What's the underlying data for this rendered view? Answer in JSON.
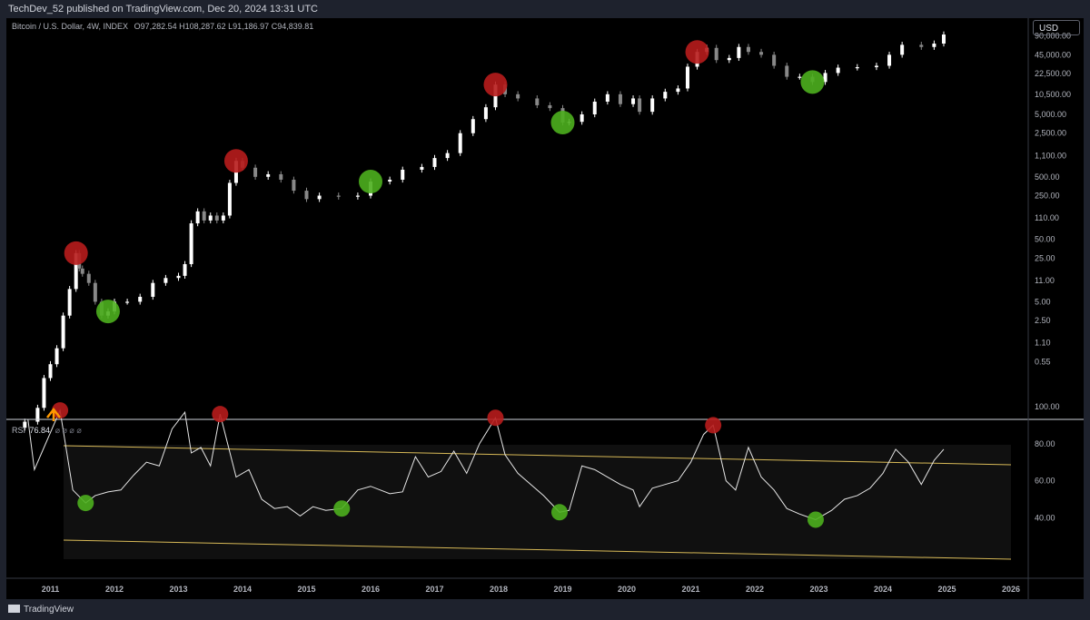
{
  "header": {
    "publish_text": "TechDev_52 published on TradingView.com, Dec 20, 2024 13:31 UTC"
  },
  "legend": {
    "symbol": "Bitcoin / U.S. Dollar, 4W, INDEX",
    "ohlc": "O97,282.54  H108,287.62  L91,186.97  C94,839.81"
  },
  "currency_button": "USD",
  "rsi": {
    "label": "RSI",
    "value": "76.84",
    "flags": "⌀ ⌀ ⌀ ⌀"
  },
  "footer": {
    "brand": "TradingView"
  },
  "colors": {
    "candle_up": "#ffffff",
    "candle_down": "#888888",
    "top_marker": "#b71c1c",
    "bottom_marker": "#4caf1e",
    "channel": "#d7b957",
    "rsi_line": "#e6e6e6",
    "arrow": "#ff9800"
  },
  "chart_data": [
    {
      "type": "line",
      "title": "Bitcoin / U.S. Dollar, 4W, INDEX",
      "scale": "log",
      "y_ticks": [
        "0.55",
        "1.10",
        "2.50",
        "5.00",
        "11.00",
        "25.00",
        "50.00",
        "110.00",
        "250.00",
        "500.00",
        "1,100.00",
        "2,500.00",
        "5,000.00",
        "10,500.00",
        "22,500.00",
        "45,000.00",
        "90,000.00"
      ],
      "x_ticks": [
        "2011",
        "2012",
        "2013",
        "2014",
        "2015",
        "2016",
        "2017",
        "2018",
        "2019",
        "2020",
        "2021",
        "2022",
        "2023",
        "2024",
        "2025",
        "2026"
      ],
      "series": [
        {
          "x": [
            2010.6,
            2010.8,
            2010.9,
            2011.0,
            2011.1,
            2011.2,
            2011.3,
            2011.4,
            2011.45,
            2011.5,
            2011.6,
            2011.7,
            2011.8,
            2011.9,
            2012.0,
            2012.2,
            2012.4,
            2012.6,
            2012.8,
            2013.0,
            2013.1,
            2013.2,
            2013.3,
            2013.4,
            2013.5,
            2013.6,
            2013.7,
            2013.8,
            2013.9,
            2014.0,
            2014.2,
            2014.4,
            2014.6,
            2014.8,
            2015.0,
            2015.2,
            2015.5,
            2015.8,
            2016.0,
            2016.3,
            2016.5,
            2016.8,
            2017.0,
            2017.2,
            2017.4,
            2017.6,
            2017.8,
            2017.95,
            2018.1,
            2018.3,
            2018.6,
            2018.8,
            2019.0,
            2019.1,
            2019.3,
            2019.5,
            2019.7,
            2019.9,
            2020.1,
            2020.2,
            2020.4,
            2020.6,
            2020.8,
            2020.95,
            2021.1,
            2021.25,
            2021.4,
            2021.6,
            2021.75,
            2021.9,
            2022.1,
            2022.3,
            2022.5,
            2022.7,
            2022.9,
            2023.1,
            2023.3,
            2023.6,
            2023.9,
            2024.1,
            2024.3,
            2024.6,
            2024.8,
            2024.95
          ],
          "values": [
            0.06,
            0.1,
            0.3,
            0.5,
            0.9,
            3,
            8,
            30,
            17,
            14,
            10,
            5,
            3,
            3.5,
            5,
            5,
            6,
            10,
            12,
            13,
            20,
            90,
            140,
            100,
            120,
            100,
            120,
            400,
            900,
            700,
            500,
            550,
            450,
            300,
            220,
            250,
            240,
            250,
            420,
            450,
            650,
            720,
            1000,
            1200,
            2500,
            4200,
            6500,
            15000,
            10500,
            9000,
            7000,
            6300,
            3700,
            3800,
            5000,
            8000,
            10500,
            7300,
            9000,
            5500,
            9000,
            11500,
            13000,
            29000,
            50000,
            58000,
            37000,
            40000,
            60000,
            50000,
            45000,
            30000,
            20000,
            20000,
            16500,
            23000,
            28000,
            28500,
            30000,
            45000,
            65000,
            60000,
            68000,
            95000
          ]
        }
      ]
    },
    {
      "type": "line",
      "title": "RSI",
      "ylim": [
        30,
        110
      ],
      "y_ticks": [
        "40.00",
        "60.00",
        "80.00",
        "100.00"
      ],
      "series": [
        {
          "name": "RSI",
          "x": [
            2010.65,
            2010.75,
            2010.9,
            2011.0,
            2011.15,
            2011.35,
            2011.55,
            2011.7,
            2011.9,
            2012.1,
            2012.3,
            2012.5,
            2012.7,
            2012.9,
            2013.1,
            2013.2,
            2013.35,
            2013.5,
            2013.65,
            2013.9,
            2014.1,
            2014.3,
            2014.5,
            2014.7,
            2014.9,
            2015.1,
            2015.3,
            2015.55,
            2015.8,
            2016.0,
            2016.3,
            2016.5,
            2016.7,
            2016.9,
            2017.1,
            2017.3,
            2017.5,
            2017.7,
            2017.95,
            2018.1,
            2018.3,
            2018.5,
            2018.7,
            2018.95,
            2019.1,
            2019.3,
            2019.5,
            2019.7,
            2019.9,
            2020.1,
            2020.2,
            2020.4,
            2020.6,
            2020.8,
            2021.0,
            2021.2,
            2021.35,
            2021.55,
            2021.7,
            2021.9,
            2022.1,
            2022.3,
            2022.5,
            2022.7,
            2022.95,
            2023.2,
            2023.4,
            2023.6,
            2023.8,
            2024.0,
            2024.2,
            2024.4,
            2024.6,
            2024.8,
            2024.95
          ],
          "values": [
            93,
            66,
            78,
            86,
            98,
            55,
            48,
            52,
            54,
            55,
            63,
            70,
            68,
            88,
            97,
            75,
            78,
            68,
            96,
            62,
            66,
            50,
            45,
            46,
            41,
            46,
            44,
            45,
            55,
            57,
            53,
            54,
            73,
            62,
            65,
            76,
            64,
            80,
            94,
            74,
            64,
            58,
            52,
            43,
            44,
            68,
            66,
            62,
            58,
            55,
            46,
            56,
            58,
            60,
            70,
            85,
            90,
            60,
            55,
            78,
            62,
            55,
            45,
            42,
            39,
            44,
            50,
            52,
            56,
            64,
            77,
            70,
            58,
            71,
            77
          ]
        }
      ]
    }
  ]
}
